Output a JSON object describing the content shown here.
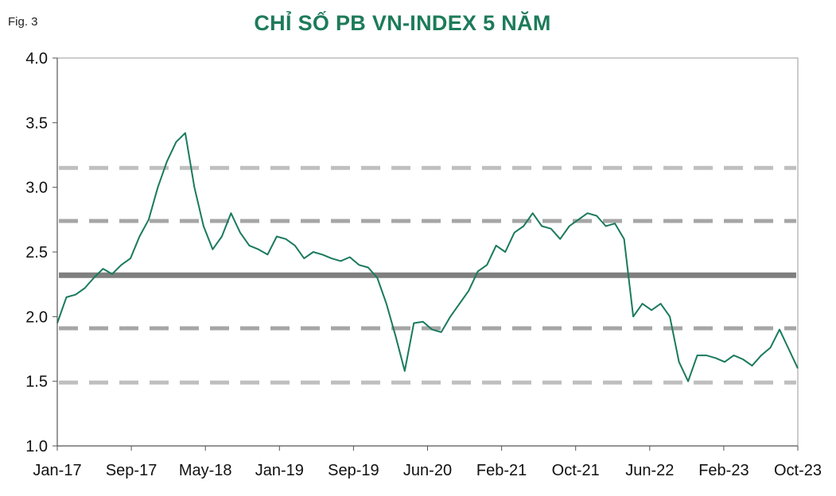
{
  "figure_label": "Fig. 3",
  "chart_data": {
    "type": "line",
    "title": "CHỈ SỐ PB VN-INDEX 5 NĂM",
    "xlabel": "",
    "ylabel": "",
    "ylim": [
      1.0,
      4.0
    ],
    "yticks": [
      "1.0",
      "1.5",
      "2.0",
      "2.5",
      "3.0",
      "3.5",
      "4.0"
    ],
    "xticks": [
      "Jan-17",
      "Sep-17",
      "May-18",
      "Jan-19",
      "Sep-19",
      "Jun-20",
      "Feb-21",
      "Oct-21",
      "Jun-22",
      "Feb-23",
      "Oct-23"
    ],
    "grid": false,
    "legend": "none",
    "colors": {
      "series": "#1a7a5e",
      "mean": "#7f7f7f",
      "inner_band": "#a6a6a6",
      "outer_band": "#bfbfbf"
    },
    "reference_lines": [
      {
        "value": 3.15,
        "style": "dashed",
        "color": "#bfbfbf"
      },
      {
        "value": 2.74,
        "style": "dashed",
        "color": "#a6a6a6"
      },
      {
        "value": 2.32,
        "style": "solid",
        "color": "#7f7f7f"
      },
      {
        "value": 1.91,
        "style": "dashed",
        "color": "#a6a6a6"
      },
      {
        "value": 1.49,
        "style": "dashed",
        "color": "#bfbfbf"
      }
    ],
    "series": [
      {
        "x": [
          "2017-01",
          "2017-02",
          "2017-03",
          "2017-04",
          "2017-05",
          "2017-06",
          "2017-07",
          "2017-08",
          "2017-09",
          "2017-10",
          "2017-11",
          "2017-12",
          "2018-01",
          "2018-02",
          "2018-03",
          "2018-04",
          "2018-05",
          "2018-06",
          "2018-07",
          "2018-08",
          "2018-09",
          "2018-10",
          "2018-11",
          "2018-12",
          "2019-01",
          "2019-02",
          "2019-03",
          "2019-04",
          "2019-05",
          "2019-06",
          "2019-07",
          "2019-08",
          "2019-09",
          "2019-10",
          "2019-11",
          "2019-12",
          "2020-01",
          "2020-02",
          "2020-03",
          "2020-04",
          "2020-05",
          "2020-06",
          "2020-07",
          "2020-08",
          "2020-09",
          "2020-10",
          "2020-11",
          "2020-12",
          "2021-01",
          "2021-02",
          "2021-03",
          "2021-04",
          "2021-05",
          "2021-06",
          "2021-07",
          "2021-08",
          "2021-09",
          "2021-10",
          "2021-11",
          "2021-12",
          "2022-01",
          "2022-02",
          "2022-03",
          "2022-04",
          "2022-05",
          "2022-06",
          "2022-07",
          "2022-08",
          "2022-09",
          "2022-10",
          "2022-11",
          "2022-12",
          "2023-01",
          "2023-02",
          "2023-03",
          "2023-04",
          "2023-05",
          "2023-06",
          "2023-07",
          "2023-08",
          "2023-09",
          "2023-10"
        ],
        "values": [
          1.95,
          2.15,
          2.17,
          2.22,
          2.3,
          2.37,
          2.33,
          2.4,
          2.45,
          2.62,
          2.75,
          3.0,
          3.2,
          3.35,
          3.42,
          3.0,
          2.7,
          2.52,
          2.62,
          2.8,
          2.65,
          2.55,
          2.52,
          2.48,
          2.62,
          2.6,
          2.55,
          2.45,
          2.5,
          2.48,
          2.45,
          2.43,
          2.46,
          2.4,
          2.38,
          2.3,
          2.1,
          1.85,
          1.58,
          1.95,
          1.96,
          1.9,
          1.88,
          2.0,
          2.1,
          2.2,
          2.35,
          2.4,
          2.55,
          2.5,
          2.65,
          2.7,
          2.8,
          2.7,
          2.68,
          2.6,
          2.7,
          2.75,
          2.8,
          2.78,
          2.7,
          2.72,
          2.6,
          2.0,
          2.1,
          2.05,
          2.1,
          2.0,
          1.65,
          1.5,
          1.7,
          1.7,
          1.68,
          1.65,
          1.7,
          1.67,
          1.62,
          1.7,
          1.76,
          1.9,
          1.75,
          1.6
        ]
      }
    ]
  }
}
